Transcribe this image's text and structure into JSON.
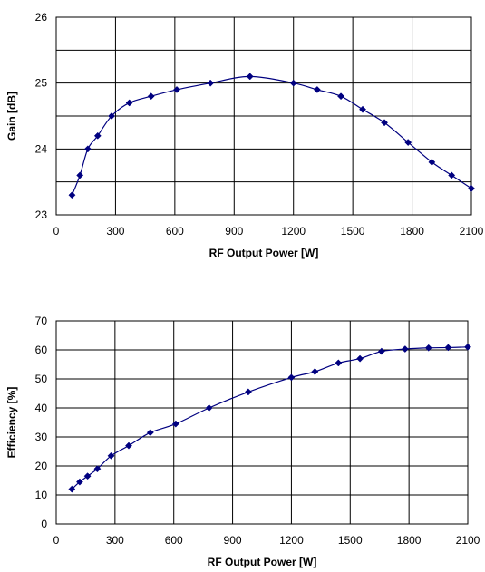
{
  "chart_data": [
    {
      "type": "line",
      "title": "",
      "xlabel": "RF Output Power [W]",
      "ylabel": "Gain [dB]",
      "xlim": [
        0,
        2100
      ],
      "ylim": [
        23,
        26
      ],
      "x_ticks": [
        0,
        300,
        600,
        900,
        1200,
        1500,
        1800,
        2100
      ],
      "y_ticks": [
        23,
        24,
        25,
        26
      ],
      "y_grid": [
        23,
        23.5,
        24,
        24.5,
        25,
        25.5,
        26
      ],
      "grid": true,
      "legend": "none",
      "color": "#000080",
      "series": [
        {
          "x": [
            80,
            120,
            160,
            210,
            280,
            370,
            480,
            610,
            780,
            980,
            1200,
            1320,
            1440,
            1550,
            1660,
            1780,
            1900,
            2000,
            2100
          ],
          "y": [
            23.3,
            23.6,
            24.0,
            24.2,
            24.5,
            24.7,
            24.8,
            24.9,
            25.0,
            25.1,
            25.0,
            24.9,
            24.8,
            24.6,
            24.4,
            24.1,
            23.8,
            23.6,
            23.4
          ]
        }
      ]
    },
    {
      "type": "line",
      "title": "",
      "xlabel": "RF Output Power [W]",
      "ylabel": "Efficiency [%]",
      "xlim": [
        0,
        2100
      ],
      "ylim": [
        0,
        70
      ],
      "x_ticks": [
        0,
        300,
        600,
        900,
        1200,
        1500,
        1800,
        2100
      ],
      "y_ticks": [
        0,
        10,
        20,
        30,
        40,
        50,
        60,
        70
      ],
      "y_grid": [
        0,
        10,
        20,
        30,
        40,
        50,
        60,
        70
      ],
      "grid": true,
      "legend": "none",
      "color": "#000080",
      "series": [
        {
          "x": [
            80,
            120,
            160,
            210,
            280,
            370,
            480,
            610,
            780,
            980,
            1200,
            1320,
            1440,
            1550,
            1660,
            1780,
            1900,
            2000,
            2100
          ],
          "y": [
            12,
            14.5,
            16.5,
            19,
            23.5,
            27,
            31.5,
            34.5,
            40,
            45.5,
            50.5,
            52.5,
            55.5,
            57,
            59.5,
            60.3,
            60.7,
            60.8,
            61
          ]
        }
      ]
    }
  ]
}
